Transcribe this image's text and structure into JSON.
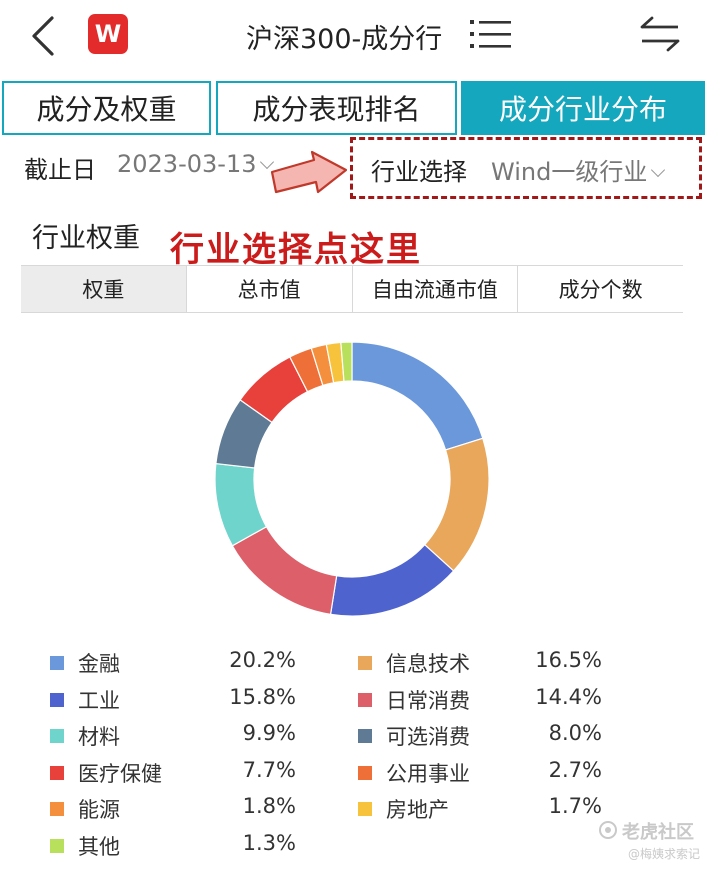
{
  "nav": {
    "title": "沪深300-成分行",
    "logo_text": "W",
    "icons": [
      "back-icon",
      "wind-logo-icon",
      "menu-icon",
      "switch-icon"
    ]
  },
  "tabs": [
    {
      "label": "成分及权重"
    },
    {
      "label": "成分表现排名"
    },
    {
      "label": "成分行业分布",
      "active": true
    }
  ],
  "filter": {
    "date_label": "截止日",
    "date_value": "2023-03-13",
    "industry_label": "行业选择",
    "industry_value": "Wind一级行业"
  },
  "section": {
    "title": "行业权重",
    "annotation": "行业选择点这里"
  },
  "subtabs": [
    {
      "label": "权重",
      "active": true
    },
    {
      "label": "总市值"
    },
    {
      "label": "自由流通市值"
    },
    {
      "label": "成分个数"
    }
  ],
  "colors": {
    "accent": "#14a7bd",
    "annotation": "#cc1b1b",
    "logo": "#e42b2b"
  },
  "chart_data": {
    "type": "pie",
    "categories": [
      "金融",
      "信息技术",
      "工业",
      "日常消费",
      "材料",
      "可选消费",
      "医疗保健",
      "公用事业",
      "能源",
      "房地产",
      "其他"
    ],
    "values": [
      20.2,
      16.5,
      15.8,
      14.4,
      9.9,
      8.0,
      7.7,
      2.7,
      1.8,
      1.7,
      1.3
    ],
    "labels": [
      "20.2%",
      "16.5%",
      "15.8%",
      "14.4%",
      "9.9%",
      "8.0%",
      "7.7%",
      "2.7%",
      "1.8%",
      "1.7%",
      "1.3%"
    ],
    "colors": [
      "#6a98db",
      "#e8a75a",
      "#4f63cf",
      "#dd5f69",
      "#6fd5cc",
      "#5e7a94",
      "#e8403a",
      "#ee7038",
      "#f48f3d",
      "#f7c33c",
      "#b8e05c"
    ],
    "chart_order": [
      "金融",
      "信息技术",
      "工业",
      "日常消费",
      "材料",
      "可选消费",
      "医疗保健",
      "公用事业",
      "能源",
      "房地产",
      "其他"
    ],
    "donut": true
  },
  "watermark": {
    "line1": "老虎社区",
    "line2": "@梅姨求索记"
  }
}
